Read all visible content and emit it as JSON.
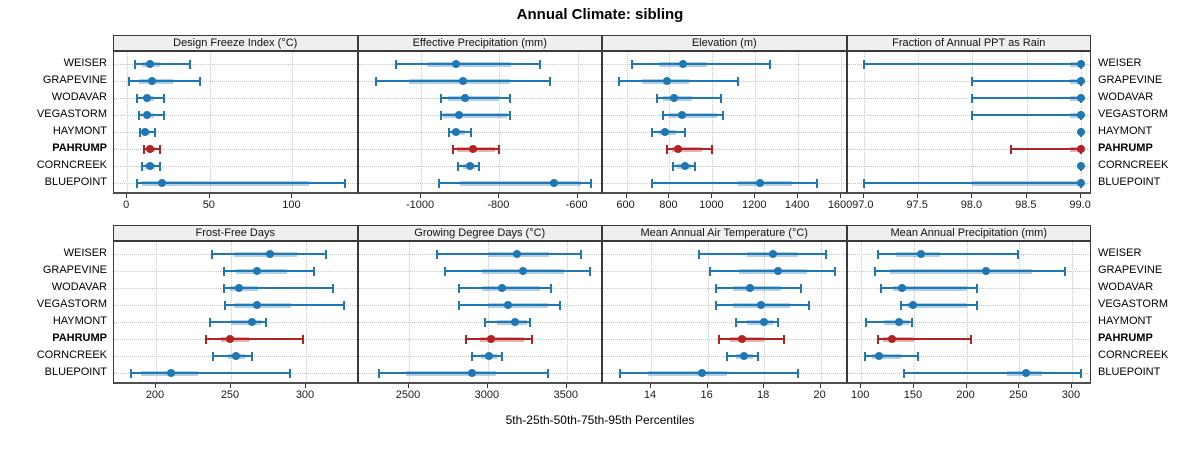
{
  "title": "Annual Climate: sibling",
  "axis_label": "5th-25th-50th-75th-95th Percentiles",
  "percentiles": [
    "5th",
    "25th",
    "50th",
    "75th",
    "95th"
  ],
  "sites": [
    {
      "name": "WEISER",
      "highlighted": false
    },
    {
      "name": "GRAPEVINE",
      "highlighted": false
    },
    {
      "name": "WODAVAR",
      "highlighted": false
    },
    {
      "name": "VEGASTORM",
      "highlighted": false
    },
    {
      "name": "HAYMONT",
      "highlighted": false
    },
    {
      "name": "PAHRUMP",
      "highlighted": true
    },
    {
      "name": "CORNCREEK",
      "highlighted": false
    },
    {
      "name": "BLUEPOINT",
      "highlighted": false
    }
  ],
  "colors": {
    "series_normal": "#1F77B4",
    "series_highlight": "#B22222",
    "band_opacity": 0.35,
    "header_bg": "#EFEFEF",
    "grid": "#C8C8C8",
    "frame": "#3A3A3A"
  },
  "chart_data": [
    {
      "type": "percentile-bars",
      "title": "Design Freeze Index (°C)",
      "grid_row": 0,
      "grid_col": 0,
      "xlim": [
        -8,
        140
      ],
      "ticks": [
        0,
        50,
        100
      ],
      "tick_decimals": 0,
      "values_by_site": [
        [
          5,
          9,
          14,
          20,
          38
        ],
        [
          1,
          7,
          15,
          28,
          44
        ],
        [
          6,
          10,
          12,
          16,
          22
        ],
        [
          7,
          10,
          12,
          16,
          22
        ],
        [
          8,
          10,
          11,
          14,
          17
        ],
        [
          10,
          12,
          14,
          17,
          20
        ],
        [
          9,
          11,
          14,
          17,
          20
        ],
        [
          6,
          9,
          21,
          110,
          132
        ]
      ]
    },
    {
      "type": "percentile-bars",
      "title": "Effective Precipitation (mm)",
      "grid_row": 0,
      "grid_col": 1,
      "xlim": [
        -1160,
        -535
      ],
      "ticks": [
        -1000,
        -800,
        -600
      ],
      "tick_decimals": 0,
      "values_by_site": [
        [
          -1065,
          -985,
          -910,
          -770,
          -695
        ],
        [
          -1115,
          -1030,
          -893,
          -773,
          -670
        ],
        [
          -950,
          -932,
          -888,
          -800,
          -772
        ],
        [
          -950,
          -945,
          -902,
          -780,
          -772
        ],
        [
          -928,
          -920,
          -910,
          -888,
          -872
        ],
        [
          -918,
          -908,
          -868,
          -812,
          -800
        ],
        [
          -906,
          -893,
          -876,
          -862,
          -853
        ],
        [
          -954,
          -900,
          -660,
          -590,
          -566
        ]
      ]
    },
    {
      "type": "percentile-bars",
      "title": "Elevation (m)",
      "grid_row": 0,
      "grid_col": 2,
      "xlim": [
        490,
        1630
      ],
      "ticks": [
        600,
        800,
        1000,
        1200,
        1400,
        1600
      ],
      "tick_decimals": 0,
      "values_by_site": [
        [
          625,
          750,
          865,
          975,
          1270
        ],
        [
          565,
          670,
          790,
          890,
          1120
        ],
        [
          740,
          770,
          820,
          905,
          1040
        ],
        [
          770,
          800,
          860,
          1020,
          1050
        ],
        [
          720,
          750,
          780,
          830,
          870
        ],
        [
          790,
          810,
          840,
          950,
          1000
        ],
        [
          815,
          835,
          870,
          900,
          920
        ],
        [
          720,
          1120,
          1220,
          1370,
          1490
        ]
      ]
    },
    {
      "type": "percentile-bars",
      "title": "Fraction of Annual PPT as Rain",
      "grid_row": 0,
      "grid_col": 3,
      "xlim": [
        96.85,
        99.1
      ],
      "ticks": [
        97.0,
        97.5,
        98.0,
        98.5,
        99.0
      ],
      "tick_decimals": 1,
      "values_by_site": [
        [
          97.0,
          98.9,
          99.0,
          99.0,
          99.0
        ],
        [
          98.0,
          98.9,
          99.0,
          99.0,
          99.0
        ],
        [
          98.0,
          98.9,
          99.0,
          99.0,
          99.0
        ],
        [
          98.0,
          98.9,
          99.0,
          99.0,
          99.0
        ],
        [
          99.0,
          99.0,
          99.0,
          99.0,
          99.0
        ],
        [
          98.35,
          98.9,
          99.0,
          99.0,
          99.0
        ],
        [
          99.0,
          99.0,
          99.0,
          99.0,
          99.0
        ],
        [
          97.0,
          98.0,
          99.0,
          99.0,
          99.0
        ]
      ]
    },
    {
      "type": "percentile-bars",
      "title": "Frost-Free Days",
      "grid_row": 1,
      "grid_col": 0,
      "xlim": [
        172,
        335
      ],
      "ticks": [
        200,
        250,
        300
      ],
      "tick_decimals": 0,
      "values_by_site": [
        [
          237,
          252,
          276,
          294,
          313
        ],
        [
          245,
          253,
          267,
          287,
          305
        ],
        [
          245,
          249,
          255,
          268,
          318
        ],
        [
          246,
          252,
          267,
          290,
          325
        ],
        [
          236,
          250,
          264,
          270,
          273
        ],
        [
          233,
          243,
          249,
          262,
          298
        ],
        [
          238,
          248,
          253,
          259,
          264
        ],
        [
          183,
          190,
          210,
          228,
          289
        ]
      ]
    },
    {
      "type": "percentile-bars",
      "title": "Growing Degree Days (°C)",
      "grid_row": 1,
      "grid_col": 1,
      "xlim": [
        2180,
        3730
      ],
      "ticks": [
        2500,
        3000,
        3500
      ],
      "tick_decimals": 0,
      "values_by_site": [
        [
          2680,
          3000,
          3185,
          3390,
          3590
        ],
        [
          2730,
          2960,
          3220,
          3480,
          3650
        ],
        [
          2820,
          2960,
          3090,
          3330,
          3400
        ],
        [
          2820,
          3000,
          3130,
          3380,
          3460
        ],
        [
          2980,
          3060,
          3170,
          3250,
          3270
        ],
        [
          2860,
          2950,
          3020,
          3230,
          3280
        ],
        [
          2900,
          2955,
          3010,
          3060,
          3090
        ],
        [
          2310,
          2480,
          2900,
          3050,
          3380
        ]
      ]
    },
    {
      "type": "percentile-bars",
      "title": "Mean Annual Air Temperature (°C)",
      "grid_row": 1,
      "grid_col": 2,
      "xlim": [
        12.3,
        20.95
      ],
      "ticks": [
        14,
        16,
        18,
        20
      ],
      "tick_decimals": 0,
      "values_by_site": [
        [
          15.7,
          17.4,
          18.3,
          19.2,
          20.2
        ],
        [
          16.1,
          17.1,
          18.5,
          19.5,
          20.5
        ],
        [
          16.3,
          16.9,
          17.5,
          18.6,
          19.3
        ],
        [
          16.3,
          16.9,
          17.9,
          18.9,
          19.6
        ],
        [
          17.0,
          17.4,
          18.0,
          18.3,
          18.5
        ],
        [
          16.4,
          16.8,
          17.2,
          18.0,
          18.7
        ],
        [
          16.7,
          17.0,
          17.3,
          17.6,
          17.8
        ],
        [
          12.9,
          13.9,
          15.8,
          16.7,
          19.2
        ]
      ]
    },
    {
      "type": "percentile-bars",
      "title": "Mean Annual Precipitation (mm)",
      "grid_row": 1,
      "grid_col": 3,
      "xlim": [
        87,
        319
      ],
      "ticks": [
        100,
        150,
        200,
        250,
        300
      ],
      "tick_decimals": 0,
      "values_by_site": [
        [
          116,
          133,
          157,
          175,
          249
        ],
        [
          113,
          127,
          218,
          262,
          293
        ],
        [
          119,
          130,
          139,
          200,
          210
        ],
        [
          138,
          143,
          149,
          200,
          210
        ],
        [
          105,
          122,
          136,
          145,
          148
        ],
        [
          116,
          121,
          129,
          150,
          204
        ],
        [
          104,
          110,
          117,
          138,
          154
        ],
        [
          141,
          238,
          256,
          272,
          309
        ]
      ]
    }
  ]
}
